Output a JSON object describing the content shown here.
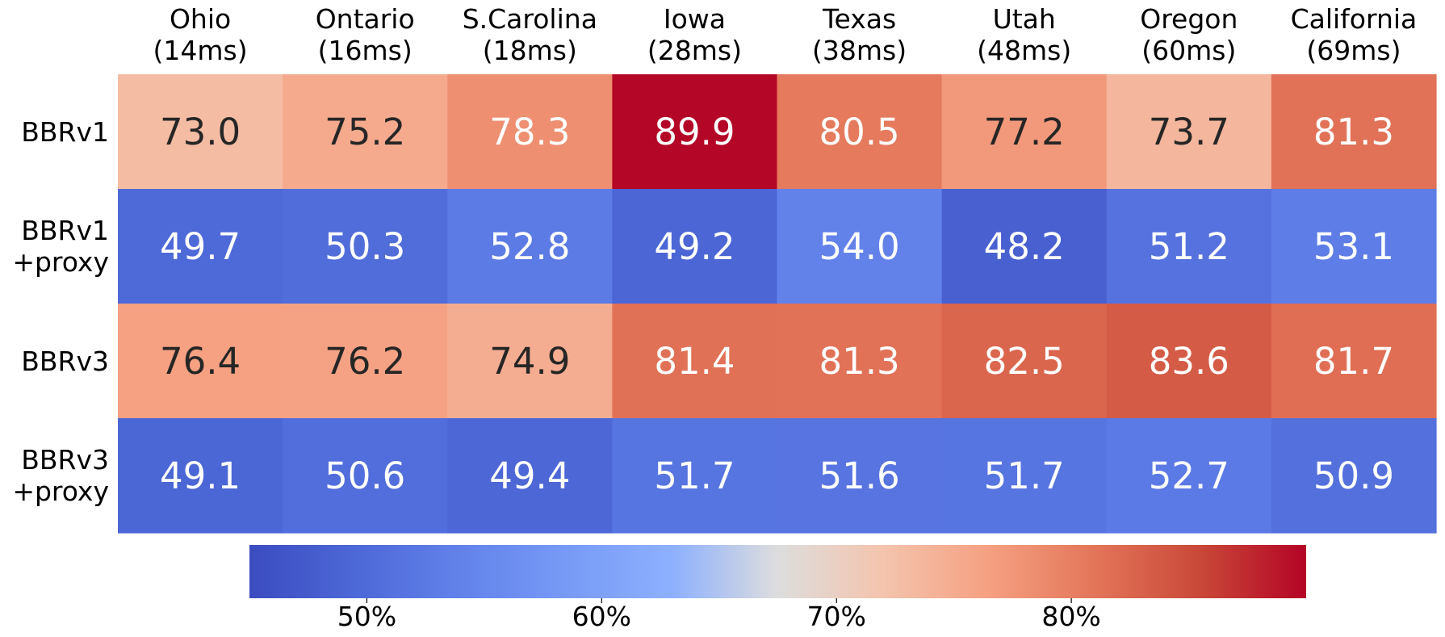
{
  "chart_data": {
    "type": "heatmap",
    "columns": [
      {
        "name": "Ohio",
        "rtt": "(14ms)"
      },
      {
        "name": "Ontario",
        "rtt": "(16ms)"
      },
      {
        "name": "S.Carolina",
        "rtt": "(18ms)"
      },
      {
        "name": "Iowa",
        "rtt": "(28ms)"
      },
      {
        "name": "Texas",
        "rtt": "(38ms)"
      },
      {
        "name": "Utah",
        "rtt": "(48ms)"
      },
      {
        "name": "Oregon",
        "rtt": "(60ms)"
      },
      {
        "name": "California",
        "rtt": "(69ms)"
      }
    ],
    "rows": [
      {
        "label_lines": [
          "BBRv1"
        ],
        "values": [
          73.0,
          75.2,
          78.3,
          89.9,
          80.5,
          77.2,
          73.7,
          81.3
        ]
      },
      {
        "label_lines": [
          "BBRv1",
          "+proxy"
        ],
        "values": [
          49.7,
          50.3,
          52.8,
          49.2,
          54.0,
          48.2,
          51.2,
          53.1
        ]
      },
      {
        "label_lines": [
          "BBRv3"
        ],
        "values": [
          76.4,
          76.2,
          74.9,
          81.4,
          81.3,
          82.5,
          83.6,
          81.7
        ]
      },
      {
        "label_lines": [
          "BBRv3",
          "+proxy"
        ],
        "values": [
          49.1,
          50.6,
          49.4,
          51.7,
          51.6,
          51.7,
          52.7,
          50.9
        ]
      }
    ],
    "value_format": "0.1f",
    "colormap": "coolwarm",
    "colorbar": {
      "orientation": "horizontal",
      "position": "bottom",
      "range": [
        45,
        90
      ],
      "ticks": [
        50,
        60,
        70,
        80
      ],
      "tick_labels": [
        "50%",
        "60%",
        "70%",
        "80%"
      ]
    }
  }
}
